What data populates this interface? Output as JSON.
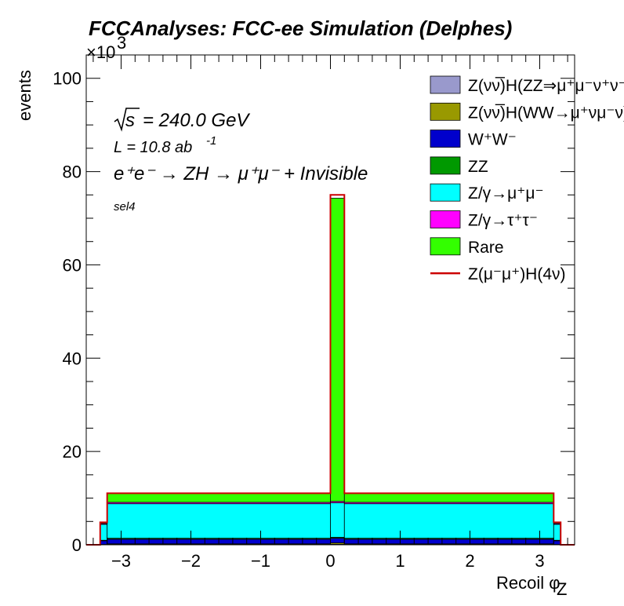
{
  "chart_data": {
    "type": "histogram-stacked",
    "title": "FCCAnalyses: FCC-ee Simulation (Delphes)",
    "xlabel": "Recoil φ",
    "xlabel_sub": "Z",
    "ylabel": "events",
    "y_multiplier": "×10",
    "y_multiplier_exp": "3",
    "xlim": [
      -3.5,
      3.5
    ],
    "ylim": [
      0,
      105
    ],
    "xticks": [
      -3,
      -2,
      -1,
      0,
      1,
      2,
      3
    ],
    "xtick_labels": [
      "−3",
      "−2",
      "−1",
      "0",
      "1",
      "2",
      "3"
    ],
    "yticks": [
      0,
      20,
      40,
      60,
      80,
      100
    ],
    "ytick_labels": [
      "0",
      "20",
      "40",
      "60",
      "80",
      "100"
    ],
    "bin_edges": [
      -3.5,
      -3.3,
      -3.2,
      0.0,
      0.2,
      3.2,
      3.3,
      3.5
    ],
    "series": [
      {
        "name": "Z(νν̅)H(ZZ⇒μ⁺μ⁻ν⁺ν⁻)",
        "color": "#9999cc",
        "values": [
          0,
          0.02,
          0.05,
          0.1,
          0.05,
          0.02,
          0
        ]
      },
      {
        "name": "Z(νν̅)H(WW→μ⁺νμ⁻ν)",
        "color": "#999900",
        "values": [
          0,
          0.05,
          0.15,
          0.3,
          0.15,
          0.05,
          0
        ]
      },
      {
        "name": "W⁺W⁻",
        "color": "#0000cc",
        "values": [
          0,
          0.8,
          1.0,
          1.0,
          1.0,
          0.8,
          0
        ]
      },
      {
        "name": "ZZ",
        "color": "#009900",
        "values": [
          0,
          0.1,
          0.2,
          0.2,
          0.2,
          0.1,
          0
        ]
      },
      {
        "name": "Z/γ→μ⁺μ⁻",
        "color": "#00ffff",
        "values": [
          0,
          3.4,
          7.4,
          7.4,
          7.4,
          3.4,
          0
        ]
      },
      {
        "name": "Z/γ→τ⁺τ⁻",
        "color": "#ff00ff",
        "values": [
          0,
          0.2,
          0.3,
          0.3,
          0.3,
          0.2,
          0
        ]
      },
      {
        "name": "Rare",
        "color": "#33ff00",
        "values": [
          0,
          0.2,
          1.9,
          65.0,
          1.9,
          0.2,
          0
        ]
      },
      {
        "name": "Z(μ⁻μ⁺)H(4ν)",
        "color": "#ff0000",
        "values": [
          0,
          0.05,
          0.05,
          0.7,
          0.05,
          0.05,
          0
        ],
        "style": "line"
      }
    ],
    "annotations": {
      "sqrt_s": "s",
      "energy": "= 240.0 GeV",
      "lumi": "L = 10.8 ab",
      "lumi_exp": "-1",
      "process": "e⁺e⁻ → ZH → μ⁺μ⁻ + Invisible",
      "selection": "sel4"
    },
    "legend_position": "top-right"
  }
}
